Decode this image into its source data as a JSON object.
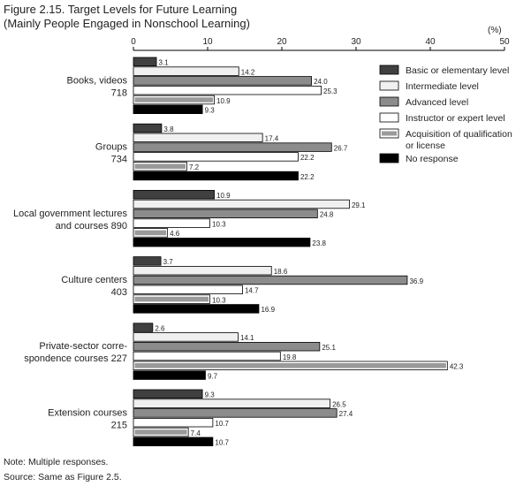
{
  "chart_data": {
    "type": "bar",
    "orientation": "horizontal",
    "title": "Figure 2.15. Target Levels for Future Learning",
    "subtitle": "(Mainly People Engaged in Nonschool Learning)",
    "unit_label": "(%)",
    "xlim": [
      0,
      50
    ],
    "ticks": [
      "0",
      "10",
      "20",
      "30",
      "40",
      "50"
    ],
    "grid": false,
    "legend_position": "top-right",
    "categories": [
      {
        "lines": [
          "Books, videos",
          "718"
        ],
        "values": [
          3.1,
          14.2,
          24.0,
          25.3,
          10.9,
          9.3
        ]
      },
      {
        "lines": [
          "Groups",
          "734"
        ],
        "values": [
          3.8,
          17.4,
          26.7,
          22.2,
          7.2,
          22.2
        ]
      },
      {
        "lines": [
          "Local government lectures",
          "and courses  890"
        ],
        "values": [
          10.9,
          29.1,
          24.8,
          10.3,
          4.6,
          23.8
        ]
      },
      {
        "lines": [
          "Culture centers",
          "403"
        ],
        "values": [
          3.7,
          18.6,
          36.9,
          14.7,
          10.3,
          16.9
        ]
      },
      {
        "lines": [
          "Private-sector corre-",
          "spondence courses  227"
        ],
        "values": [
          2.6,
          14.1,
          25.1,
          19.8,
          42.3,
          9.7
        ]
      },
      {
        "lines": [
          "Extension courses",
          "215"
        ],
        "values": [
          9.3,
          26.5,
          27.4,
          10.7,
          7.4,
          10.7
        ]
      }
    ],
    "series": [
      {
        "name": "Basic or elementary level",
        "color": "#404040",
        "stroke": "#000000",
        "style": "solid"
      },
      {
        "name": "Intermediate level",
        "color": "#f0f0f0",
        "stroke": "#000000",
        "style": "solid"
      },
      {
        "name": "Advanced level",
        "color": "#8c8c8c",
        "stroke": "#000000",
        "style": "solid"
      },
      {
        "name": "Instructor or expert level",
        "color": "#ffffff",
        "stroke": "#000000",
        "style": "solid"
      },
      {
        "name": "Acquisition of qualification or license",
        "legend_lines": [
          "Acquisition of qualification",
          "or license"
        ],
        "color": "#9a9a9a",
        "stroke": "#000000",
        "style": "framed"
      },
      {
        "name": "No response",
        "color": "#000000",
        "stroke": "#000000",
        "style": "solid"
      }
    ],
    "notes": [
      "Note: Multiple responses.",
      "Source: Same as Figure 2.5."
    ]
  }
}
